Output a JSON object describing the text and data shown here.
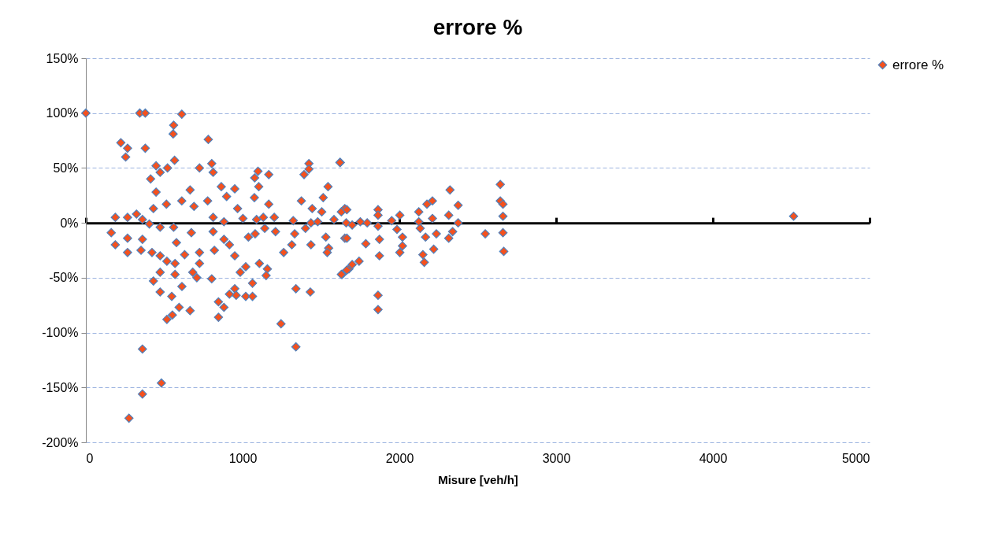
{
  "chart_data": {
    "type": "scatter",
    "title": "errore %",
    "xlabel": "Misure [veh/h]",
    "marker": "diamond",
    "grid": "y",
    "legend": "right",
    "xlim": [
      0,
      5000
    ],
    "xticks": [
      0,
      1000,
      2000,
      3000,
      4000,
      5000
    ],
    "ylim": [
      -200,
      150
    ],
    "yticks": [
      {
        "value": -200,
        "label": "-200%"
      },
      {
        "value": -150,
        "label": "-150%"
      },
      {
        "value": -100,
        "label": "-100%"
      },
      {
        "value": -50,
        "label": "-50%"
      },
      {
        "value": 0,
        "label": "0%"
      },
      {
        "value": 50,
        "label": "50%"
      },
      {
        "value": 100,
        "label": "100%"
      },
      {
        "value": 150,
        "label": "150%"
      }
    ],
    "series": [
      {
        "name": "errore %",
        "color": "#f4511e",
        "x": [
          0,
          344,
          379,
          612,
          560,
          557,
          781,
          223,
          266,
          379,
          254,
          448,
          413,
          474,
          521,
          566,
          725,
          803,
          812,
          448,
          665,
          1077,
          1098,
          1167,
          1103,
          1075,
          1167,
          1392,
          1423,
          1423,
          1623,
          1545,
          1514,
          950,
          864,
          898,
          777,
          690,
          612,
          514,
          431,
          188,
          266,
          323,
          361,
          162,
          188,
          266,
          266,
          352,
          361,
          405,
          474,
          560,
          578,
          673,
          422,
          474,
          517,
          569,
          569,
          474,
          431,
          474,
          548,
          613,
          630,
          725,
          725,
          682,
          708,
          517,
          552,
          595,
          665,
          361,
          361,
          482,
          275,
          812,
          881,
          968,
          1002,
          812,
          820,
          803,
          846,
          846,
          881,
          881,
          916,
          950,
          985,
          950,
          959,
          916,
          1020,
          1063,
          1020,
          1063,
          1107,
          1158,
          1150,
          1037,
          1080,
          1141,
          1089,
          1132,
          1202,
          1210,
          1262,
          1314,
          1332,
          1245,
          1340,
          1340,
          1432,
          1323,
          1375,
          1401,
          1444,
          1436,
          1436,
          1479,
          1505,
          1531,
          1549,
          1540,
          1583,
          1652,
          1661,
          1652,
          1635,
          1678,
          1621,
          1630,
          1665,
          1699,
          1751,
          1795,
          1665,
          1786,
          1743,
          1699,
          1665,
          1630,
          1864,
          1864,
          1864,
          1873,
          1873,
          1864,
          1864,
          1951,
          2003,
          1985,
          2020,
          2020,
          2003,
          2124,
          2124,
          2133,
          2167,
          2150,
          2159,
          2176,
          2211,
          2211,
          2236,
          2219,
          2323,
          2375,
          2315,
          2375,
          2340,
          2315,
          2548,
          2644,
          2644,
          2661,
          2661,
          2661,
          2666,
          4515
        ],
        "values": [
          100,
          100,
          100,
          99,
          89,
          81,
          76,
          73,
          68,
          68,
          60,
          52,
          40,
          46,
          50,
          57,
          50,
          54,
          46,
          28,
          30,
          41,
          47,
          44,
          33,
          23,
          17,
          44,
          54,
          49,
          55,
          33,
          23,
          31,
          33,
          24,
          20,
          15,
          20,
          17,
          13,
          5,
          5,
          8,
          3,
          -9,
          -20,
          -14,
          -27,
          -25,
          -15,
          -1,
          -4,
          -4,
          -18,
          -9,
          -27,
          -30,
          -35,
          -37,
          -47,
          -45,
          -53,
          -63,
          -67,
          -58,
          -29,
          -27,
          -37,
          -45,
          -50,
          -88,
          -84,
          -77,
          -80,
          -115,
          -156,
          -146,
          -178,
          5,
          1,
          13,
          4,
          -8,
          -25,
          -51,
          -72,
          -86,
          -77,
          -15,
          -20,
          -30,
          -45,
          -60,
          -66,
          -65,
          -67,
          -67,
          -40,
          -55,
          -37,
          -42,
          -48,
          -13,
          -10,
          -5,
          3,
          5,
          5,
          -8,
          -27,
          -20,
          -10,
          -92,
          -60,
          -113,
          -63,
          2,
          20,
          -5,
          13,
          -20,
          0,
          1,
          10,
          -13,
          -23,
          -27,
          3,
          13,
          0,
          -14,
          -47,
          -42,
          55,
          10,
          12,
          -2,
          1,
          0,
          -14,
          -19,
          -35,
          -38,
          -43,
          -47,
          12,
          7,
          -3,
          -15,
          -30,
          -66,
          -79,
          2,
          7,
          -6,
          -13,
          -21,
          -27,
          10,
          1,
          -5,
          -13,
          -29,
          -36,
          17,
          20,
          4,
          -10,
          -24,
          30,
          16,
          7,
          0,
          -8,
          -14,
          -10,
          35,
          20,
          17,
          6,
          -9,
          -26,
          6
        ]
      }
    ]
  }
}
